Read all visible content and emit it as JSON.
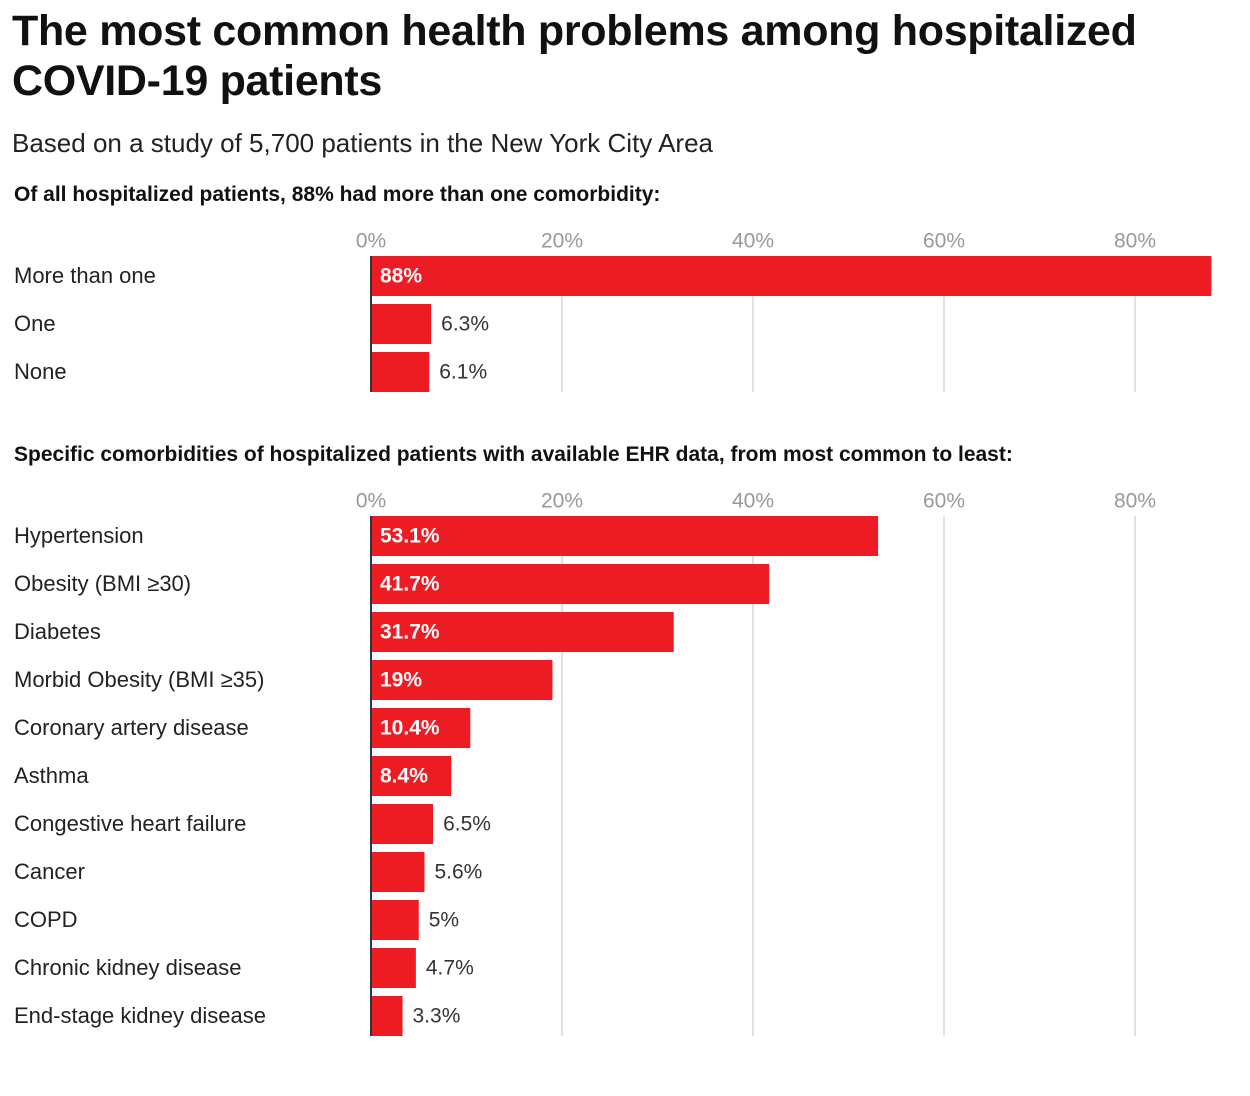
{
  "title": "The most common health problems among hospitalized COVID-19 patients",
  "subtitle": "Based on a study of 5,700 patients in the New York City Area",
  "colors": {
    "bar": "#ed1c24",
    "grid": "#e0e0e0",
    "baseline": "#333333"
  },
  "chart_data": [
    {
      "type": "bar",
      "orientation": "horizontal",
      "title": "Of all hospitalized patients, 88% had more than one comorbidity:",
      "categories": [
        "More than one",
        "One",
        "None"
      ],
      "values": [
        88,
        6.3,
        6.1
      ],
      "labels": [
        "88%",
        "6.3%",
        "6.1%"
      ],
      "xlim": [
        0,
        88
      ],
      "xticks": [
        "0%",
        "20%",
        "40%",
        "60%",
        "80%"
      ],
      "grid": true
    },
    {
      "type": "bar",
      "orientation": "horizontal",
      "title": "Specific comorbidities of hospitalized patients with available EHR data, from most common to least:",
      "categories": [
        "Hypertension",
        "Obesity (BMI ≥30)",
        "Diabetes",
        "Morbid Obesity (BMI ≥35)",
        "Coronary artery disease",
        "Asthma",
        "Congestive heart failure",
        "Cancer",
        "COPD",
        "Chronic kidney disease",
        "End-stage kidney disease"
      ],
      "values": [
        53.1,
        41.7,
        31.7,
        19,
        10.4,
        8.4,
        6.5,
        5.6,
        5,
        4.7,
        3.3
      ],
      "labels": [
        "53.1%",
        "41.7%",
        "31.7%",
        "19%",
        "10.4%",
        "8.4%",
        "6.5%",
        "5.6%",
        "5%",
        "4.7%",
        "3.3%"
      ],
      "xlim": [
        0,
        88
      ],
      "xticks": [
        "0%",
        "20%",
        "40%",
        "60%",
        "80%"
      ],
      "grid": true
    }
  ]
}
